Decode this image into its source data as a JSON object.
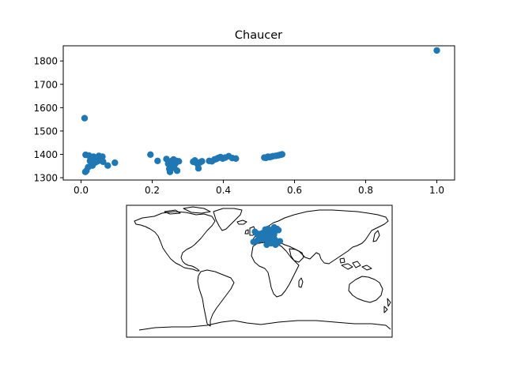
{
  "chart_data": [
    {
      "type": "scatter",
      "title": "Chaucer",
      "xlabel": "",
      "ylabel": "",
      "xlim": [
        -0.05,
        1.05
      ],
      "ylim": [
        1290,
        1865
      ],
      "xticks": [
        0.0,
        0.2,
        0.4,
        0.6,
        0.8,
        1.0
      ],
      "xtick_labels": [
        "0.0",
        "0.2",
        "0.4",
        "0.6",
        "0.8",
        "1.0"
      ],
      "yticks": [
        1300,
        1400,
        1500,
        1600,
        1700,
        1800
      ],
      "ytick_labels": [
        "1300",
        "1400",
        "1500",
        "1600",
        "1700",
        "1800"
      ],
      "grid": false,
      "color": "#1f77b4",
      "series": [
        {
          "points": [
            [
              0.01,
              1555
            ],
            [
              0.012,
              1325
            ],
            [
              0.015,
              1330
            ],
            [
              0.013,
              1398
            ],
            [
              0.02,
              1345
            ],
            [
              0.022,
              1395
            ],
            [
              0.025,
              1372
            ],
            [
              0.028,
              1382
            ],
            [
              0.03,
              1360
            ],
            [
              0.032,
              1352
            ],
            [
              0.035,
              1390
            ],
            [
              0.038,
              1378
            ],
            [
              0.04,
              1365
            ],
            [
              0.043,
              1385
            ],
            [
              0.046,
              1370
            ],
            [
              0.05,
              1393
            ],
            [
              0.055,
              1374
            ],
            [
              0.06,
              1390
            ],
            [
              0.062,
              1368
            ],
            [
              0.075,
              1352
            ],
            [
              0.095,
              1364
            ],
            [
              0.195,
              1399
            ],
            [
              0.215,
              1372
            ],
            [
              0.24,
              1380
            ],
            [
              0.245,
              1360
            ],
            [
              0.248,
              1338
            ],
            [
              0.25,
              1325
            ],
            [
              0.252,
              1366
            ],
            [
              0.255,
              1372
            ],
            [
              0.258,
              1350
            ],
            [
              0.26,
              1378
            ],
            [
              0.262,
              1342
            ],
            [
              0.265,
              1360
            ],
            [
              0.268,
              1372
            ],
            [
              0.27,
              1330
            ],
            [
              0.275,
              1370
            ],
            [
              0.315,
              1368
            ],
            [
              0.32,
              1374
            ],
            [
              0.325,
              1362
            ],
            [
              0.328,
              1358
            ],
            [
              0.33,
              1340
            ],
            [
              0.335,
              1366
            ],
            [
              0.34,
              1370
            ],
            [
              0.36,
              1372
            ],
            [
              0.368,
              1370
            ],
            [
              0.375,
              1378
            ],
            [
              0.38,
              1380
            ],
            [
              0.385,
              1384
            ],
            [
              0.392,
              1388
            ],
            [
              0.398,
              1382
            ],
            [
              0.405,
              1386
            ],
            [
              0.415,
              1392
            ],
            [
              0.425,
              1384
            ],
            [
              0.435,
              1382
            ],
            [
              0.515,
              1386
            ],
            [
              0.52,
              1385
            ],
            [
              0.525,
              1390
            ],
            [
              0.53,
              1388
            ],
            [
              0.535,
              1390
            ],
            [
              0.54,
              1392
            ],
            [
              0.548,
              1394
            ],
            [
              0.555,
              1396
            ],
            [
              0.56,
              1398
            ],
            [
              0.565,
              1400
            ],
            [
              1.0,
              1845
            ]
          ]
        }
      ]
    },
    {
      "type": "map",
      "projection": "plate-carree",
      "coastlines": true,
      "marker_color": "#1f77b4",
      "markers": [
        {
          "lon": -6,
          "lat": 54
        },
        {
          "lon": -4,
          "lat": 52
        },
        {
          "lon": -2,
          "lat": 50
        },
        {
          "lon": 0,
          "lat": 51
        },
        {
          "lon": 2,
          "lat": 49
        },
        {
          "lon": 4,
          "lat": 52
        },
        {
          "lon": 6,
          "lat": 50
        },
        {
          "lon": 8,
          "lat": 48
        },
        {
          "lon": 10,
          "lat": 53
        },
        {
          "lon": 12,
          "lat": 50
        },
        {
          "lon": 14,
          "lat": 52
        },
        {
          "lon": 16,
          "lat": 48
        },
        {
          "lon": 18,
          "lat": 55
        },
        {
          "lon": 20,
          "lat": 50
        },
        {
          "lon": 22,
          "lat": 55
        },
        {
          "lon": -8,
          "lat": 40
        },
        {
          "lon": -4,
          "lat": 41
        },
        {
          "lon": -2,
          "lat": 43
        },
        {
          "lon": 0,
          "lat": 45
        },
        {
          "lon": 2,
          "lat": 43
        },
        {
          "lon": 5,
          "lat": 45
        },
        {
          "lon": 8,
          "lat": 44
        },
        {
          "lon": 10,
          "lat": 45
        },
        {
          "lon": 12,
          "lat": 42
        },
        {
          "lon": 14,
          "lat": 41
        },
        {
          "lon": 16,
          "lat": 44
        },
        {
          "lon": 20,
          "lat": 45
        },
        {
          "lon": 22,
          "lat": 42
        },
        {
          "lon": 24,
          "lat": 38
        },
        {
          "lon": 26,
          "lat": 40
        },
        {
          "lon": 28,
          "lat": 41
        },
        {
          "lon": 10,
          "lat": 36
        },
        {
          "lon": 12,
          "lat": 38
        },
        {
          "lon": 16,
          "lat": 38
        },
        {
          "lon": 22,
          "lat": 36
        },
        {
          "lon": 24,
          "lat": 58
        },
        {
          "lon": 26,
          "lat": 56
        },
        {
          "lon": 20,
          "lat": 60
        },
        {
          "lon": 8,
          "lat": 57
        },
        {
          "lon": 12,
          "lat": 58
        }
      ]
    }
  ]
}
